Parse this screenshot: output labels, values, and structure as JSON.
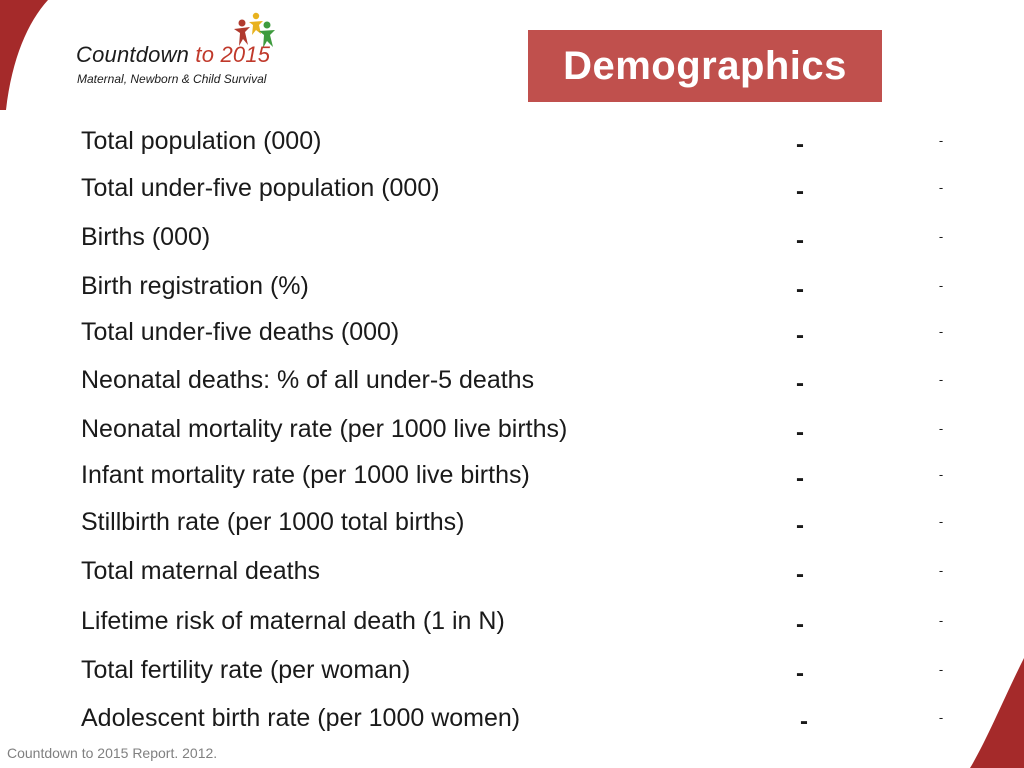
{
  "logo": {
    "title_main": "Countdown ",
    "title_accent": "to 2015",
    "subtitle": "Maternal, Newborn & Child Survival"
  },
  "title": "Demographics",
  "rows": [
    {
      "label": "Total population (000)",
      "value1": "-",
      "value2": "-"
    },
    {
      "label": "Total under-five population (000)",
      "value1": "-",
      "value2": "-"
    },
    {
      "label": "Births (000)",
      "value1": "-",
      "value2": "-"
    },
    {
      "label": "Birth registration (%)",
      "value1": "-",
      "value2": "-"
    },
    {
      "label": "Total under-five deaths (000)",
      "value1": "-",
      "value2": "-"
    },
    {
      "label": "Neonatal deaths: % of all under-5 deaths",
      "value1": "-",
      "value2": "-"
    },
    {
      "label": "Neonatal mortality rate (per 1000 live births)",
      "value1": "-",
      "value2": "-"
    },
    {
      "label": "Infant mortality rate (per 1000 live births)",
      "value1": "-",
      "value2": "-"
    },
    {
      "label": "Stillbirth rate (per 1000 total births)",
      "value1": "-",
      "value2": "-"
    },
    {
      "label": "Total maternal deaths",
      "value1": "-",
      "value2": "-"
    },
    {
      "label": "Lifetime risk of maternal death (1 in N)",
      "value1": "-",
      "value2": "-"
    },
    {
      "label": "Total fertility rate (per woman)",
      "value1": "-",
      "value2": "-"
    },
    {
      "label": "Adolescent birth rate (per 1000 women)",
      "value1": "-",
      "value2": "-"
    }
  ],
  "footer": "Countdown to 2015 Report. 2012.",
  "colors": {
    "accent": "#c0504d",
    "corner": "#a52a2a",
    "text": "#1a1a1a"
  }
}
